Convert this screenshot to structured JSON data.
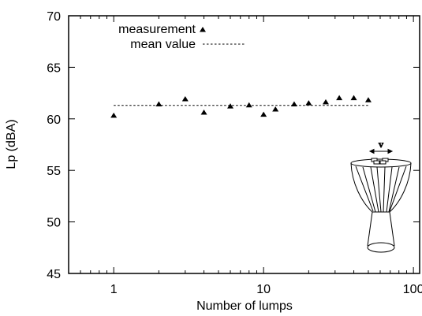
{
  "chart_data": {
    "type": "scatter",
    "title": "",
    "xlabel": "Number of lumps",
    "ylabel": "Lp (dBA)",
    "xscale": "log",
    "xlim": [
      0.5,
      110
    ],
    "ylim": [
      45,
      70
    ],
    "x_ticks": [
      1,
      10,
      100
    ],
    "x_tick_labels": [
      "1",
      "10",
      "100"
    ],
    "y_ticks": [
      45,
      50,
      55,
      60,
      65,
      70
    ],
    "y_tick_labels": [
      "45",
      "50",
      "55",
      "60",
      "65",
      "70"
    ],
    "grid": false,
    "legend_position": "top-left",
    "series": [
      {
        "name": "measurement",
        "marker": "triangle",
        "x": [
          1,
          2,
          3,
          4,
          6,
          8,
          10,
          12,
          16,
          20,
          26,
          32,
          40,
          50
        ],
        "y": [
          60.3,
          61.4,
          61.9,
          60.6,
          61.2,
          61.3,
          60.4,
          60.9,
          61.4,
          61.5,
          61.6,
          62.0,
          62.0,
          61.8
        ]
      },
      {
        "name": "mean value",
        "style": "dotted-line",
        "x": [
          1,
          50
        ],
        "y": [
          61.3,
          61.3
        ]
      }
    ],
    "annotations": [
      "v"
    ]
  }
}
